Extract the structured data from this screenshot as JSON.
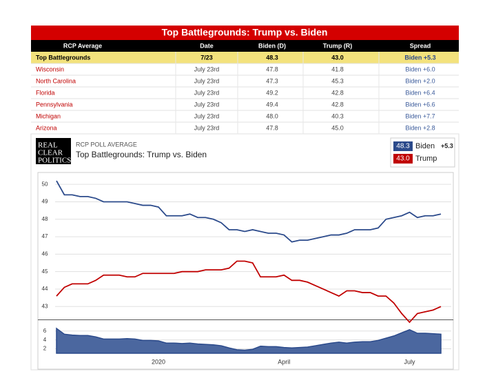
{
  "table": {
    "title": "Top Battlegrounds: Trump vs. Biden",
    "header": [
      "RCP Average",
      "Date",
      "Biden (D)",
      "Trump (R)",
      "Spread"
    ],
    "rows": [
      [
        "Top Battlegrounds",
        "7/23",
        "48.3",
        "43.0",
        "Biden +5.3"
      ],
      [
        "Wisconsin",
        "July 23rd",
        "47.8",
        "41.8",
        "Biden +6.0"
      ],
      [
        "North Carolina",
        "July 23rd",
        "47.3",
        "45.3",
        "Biden +2.0"
      ],
      [
        "Florida",
        "July 23rd",
        "49.2",
        "42.8",
        "Biden +6.4"
      ],
      [
        "Pennsylvania",
        "July 23rd",
        "49.4",
        "42.8",
        "Biden +6.6"
      ],
      [
        "Michigan",
        "July 23rd",
        "48.0",
        "40.3",
        "Biden +7.7"
      ],
      [
        "Arizona",
        "July 23rd",
        "47.8",
        "45.0",
        "Biden +2.8"
      ]
    ]
  },
  "logo": [
    "REAL",
    "CLEAR",
    "POLITICS"
  ],
  "chart_data": [
    {
      "type": "line",
      "label": "RCP POLL AVERAGE",
      "title": "Top Battlegrounds: Trump vs. Biden",
      "categories": [
        null,
        null,
        null,
        null,
        null,
        null,
        null,
        null,
        null,
        null,
        null,
        null,
        null,
        "2020",
        null,
        null,
        null,
        null,
        null,
        null,
        null,
        null,
        null,
        null,
        null,
        null,
        null,
        null,
        null,
        "April",
        null,
        null,
        null,
        null,
        null,
        null,
        null,
        null,
        null,
        null,
        null,
        null,
        null,
        null,
        null,
        "July",
        null,
        null,
        null,
        null
      ],
      "series": [
        {
          "name": "Biden",
          "color": "#2b4a8b",
          "legend_value": "48.3",
          "legend_spread": "+5.3",
          "values": [
            50.2,
            49.4,
            49.4,
            49.3,
            49.3,
            49.2,
            49.0,
            49.0,
            49.0,
            49.0,
            48.9,
            48.8,
            48.8,
            48.7,
            48.2,
            48.2,
            48.2,
            48.3,
            48.1,
            48.1,
            48.0,
            47.8,
            47.4,
            47.4,
            47.3,
            47.4,
            47.3,
            47.2,
            47.2,
            47.1,
            46.7,
            46.8,
            46.8,
            46.9,
            47.0,
            47.1,
            47.1,
            47.2,
            47.4,
            47.4,
            47.4,
            47.5,
            48.0,
            48.1,
            48.2,
            48.4,
            48.1,
            48.2,
            48.2,
            48.3
          ]
        },
        {
          "name": "Trump",
          "color": "#c00000",
          "legend_value": "43.0",
          "values": [
            43.6,
            44.1,
            44.3,
            44.3,
            44.3,
            44.5,
            44.8,
            44.8,
            44.8,
            44.7,
            44.7,
            44.9,
            44.9,
            44.9,
            44.9,
            44.9,
            45.0,
            45.0,
            45.0,
            45.1,
            45.1,
            45.1,
            45.2,
            45.6,
            45.6,
            45.5,
            44.7,
            44.7,
            44.7,
            44.8,
            44.5,
            44.5,
            44.4,
            44.2,
            44.0,
            43.8,
            43.6,
            43.9,
            43.9,
            43.8,
            43.8,
            43.6,
            43.6,
            43.2,
            42.6,
            42.1,
            42.6,
            42.7,
            42.8,
            43.0
          ]
        }
      ],
      "ylim": [
        42.3,
        50.6
      ],
      "yticks": [
        43,
        44,
        45,
        46,
        47,
        48,
        49,
        50
      ],
      "grid": true
    },
    {
      "type": "area",
      "color": "#2b4a8b",
      "values": [
        6.6,
        5.3,
        5.1,
        5.0,
        5.0,
        4.7,
        4.2,
        4.2,
        4.2,
        4.3,
        4.2,
        3.9,
        3.9,
        3.8,
        3.3,
        3.3,
        3.2,
        3.3,
        3.1,
        3.0,
        2.9,
        2.7,
        2.2,
        1.8,
        1.7,
        1.9,
        2.6,
        2.5,
        2.5,
        2.3,
        2.2,
        2.3,
        2.4,
        2.7,
        3.0,
        3.3,
        3.5,
        3.3,
        3.5,
        3.6,
        3.6,
        3.9,
        4.4,
        4.9,
        5.6,
        6.3,
        5.5,
        5.5,
        5.4,
        5.3
      ],
      "ylim": [
        1,
        8.3
      ],
      "yticks": [
        2,
        4,
        6
      ],
      "grid": true
    }
  ]
}
